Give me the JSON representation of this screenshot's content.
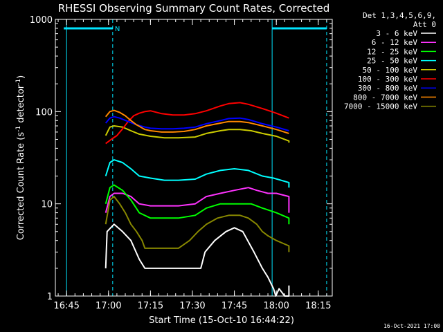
{
  "chart_data": {
    "type": "line",
    "title": "RHESSI Observing Summary Count Rates, Corrected",
    "xlabel": "Start Time (15-Oct-10 16:44:22)",
    "ylabel_parts": [
      "Corrected Count Rate (s",
      "-1",
      " detector",
      "-1",
      ")"
    ],
    "xlim_minutes": [
      -4,
      95
    ],
    "ylim": [
      1,
      1000
    ],
    "log_y": true,
    "x_ticks": [
      {
        "t": 0,
        "label": "16:45"
      },
      {
        "t": 15,
        "label": "17:00"
      },
      {
        "t": 30,
        "label": "17:15"
      },
      {
        "t": 45,
        "label": "17:30"
      },
      {
        "t": 60,
        "label": "17:45"
      },
      {
        "t": 75,
        "label": "18:00"
      },
      {
        "t": 90,
        "label": "18:15"
      }
    ],
    "y_ticks": [
      {
        "v": 1,
        "label": "1"
      },
      {
        "v": 10,
        "label": "10"
      },
      {
        "v": 100,
        "label": "100"
      },
      {
        "v": 1000,
        "label": "1000"
      }
    ],
    "legend_position": "top-right (outside plot)",
    "legend_header": [
      "Det 1,3,4,5,6,9,",
      "Att 0"
    ],
    "night_flag_label": "N",
    "night_color": "#00e5ff",
    "night_intervals": [
      {
        "start": -1,
        "end": 16.5
      },
      {
        "start": 73.5,
        "end": 93
      }
    ],
    "night_dashed_lines": [
      16.5,
      93
    ],
    "night_solid_lines": [
      0,
      73.5
    ],
    "series": [
      {
        "name": "3 - 6 keV",
        "color": "#ffffff",
        "points": [
          [
            14,
            2
          ],
          [
            14.5,
            5
          ],
          [
            17,
            6
          ],
          [
            20,
            5
          ],
          [
            23,
            4
          ],
          [
            26,
            2.5
          ],
          [
            28,
            2
          ],
          [
            40,
            2
          ],
          [
            48,
            2
          ],
          [
            49.5,
            3
          ],
          [
            53,
            4
          ],
          [
            57,
            5
          ],
          [
            60,
            5.5
          ],
          [
            63,
            5
          ],
          [
            67,
            3
          ],
          [
            70,
            2
          ],
          [
            72,
            1.6
          ],
          [
            74,
            1.2
          ],
          [
            74.8,
            1
          ],
          [
            76,
            1.2
          ],
          [
            78,
            1
          ],
          [
            79.5,
            1
          ],
          [
            79.5,
            1.3
          ]
        ]
      },
      {
        "name": "6 - 12 keV",
        "color": "#ff33ff",
        "points": [
          [
            14,
            8
          ],
          [
            15.5,
            12
          ],
          [
            17,
            13
          ],
          [
            20,
            13
          ],
          [
            23,
            12
          ],
          [
            26,
            10
          ],
          [
            30,
            9.5
          ],
          [
            35,
            9.5
          ],
          [
            40,
            9.5
          ],
          [
            46,
            10
          ],
          [
            50,
            12
          ],
          [
            55,
            13
          ],
          [
            60,
            14
          ],
          [
            65,
            15
          ],
          [
            68,
            14
          ],
          [
            72,
            13
          ],
          [
            75,
            13
          ],
          [
            79.5,
            12
          ],
          [
            79.5,
            8
          ]
        ]
      },
      {
        "name": "12 - 25 keV",
        "color": "#00ff00",
        "points": [
          [
            14,
            10
          ],
          [
            15.5,
            15
          ],
          [
            17,
            16
          ],
          [
            20,
            14
          ],
          [
            23,
            11
          ],
          [
            26,
            8
          ],
          [
            30,
            7
          ],
          [
            35,
            7
          ],
          [
            40,
            7
          ],
          [
            46,
            7.5
          ],
          [
            50,
            9
          ],
          [
            55,
            10
          ],
          [
            58,
            10
          ],
          [
            62,
            10
          ],
          [
            66,
            10
          ],
          [
            70,
            9
          ],
          [
            75,
            8
          ],
          [
            79.5,
            7
          ],
          [
            79.5,
            6
          ]
        ]
      },
      {
        "name": "25 - 50 keV",
        "color": "#00ffff",
        "points": [
          [
            14,
            20
          ],
          [
            15.5,
            28
          ],
          [
            17,
            30
          ],
          [
            20,
            28
          ],
          [
            23,
            24
          ],
          [
            26,
            20
          ],
          [
            30,
            19
          ],
          [
            35,
            18
          ],
          [
            40,
            18
          ],
          [
            46,
            18.5
          ],
          [
            50,
            21
          ],
          [
            55,
            23
          ],
          [
            60,
            24
          ],
          [
            65,
            23
          ],
          [
            70,
            20
          ],
          [
            74,
            19
          ],
          [
            79.5,
            17
          ],
          [
            79.5,
            15
          ]
        ]
      },
      {
        "name": "50 - 100 keV",
        "color": "#cccc00",
        "points": [
          [
            14,
            55
          ],
          [
            15.5,
            68
          ],
          [
            17,
            70
          ],
          [
            20,
            68
          ],
          [
            23,
            62
          ],
          [
            26,
            57
          ],
          [
            30,
            54
          ],
          [
            35,
            52
          ],
          [
            40,
            52
          ],
          [
            46,
            53
          ],
          [
            50,
            58
          ],
          [
            55,
            62
          ],
          [
            58,
            64
          ],
          [
            62,
            64
          ],
          [
            66,
            62
          ],
          [
            70,
            58
          ],
          [
            75,
            54
          ],
          [
            79.5,
            48
          ],
          [
            79.5,
            46
          ]
        ]
      },
      {
        "name": "100 - 300 keV",
        "color": "#ff0000",
        "points": [
          [
            14,
            45
          ],
          [
            16,
            50
          ],
          [
            18,
            55
          ],
          [
            20,
            65
          ],
          [
            22,
            78
          ],
          [
            24,
            90
          ],
          [
            26,
            96
          ],
          [
            28,
            100
          ],
          [
            30,
            102
          ],
          [
            34,
            95
          ],
          [
            38,
            92
          ],
          [
            42,
            92
          ],
          [
            46,
            95
          ],
          [
            50,
            102
          ],
          [
            55,
            115
          ],
          [
            58,
            122
          ],
          [
            62,
            125
          ],
          [
            65,
            120
          ],
          [
            70,
            108
          ],
          [
            75,
            96
          ],
          [
            79.5,
            85
          ]
        ]
      },
      {
        "name": "300 - 800 keV",
        "color": "#0000ff",
        "points": [
          [
            14,
            75
          ],
          [
            15.5,
            85
          ],
          [
            17,
            88
          ],
          [
            19,
            85
          ],
          [
            22,
            78
          ],
          [
            25,
            72
          ],
          [
            28,
            68
          ],
          [
            30,
            66
          ],
          [
            34,
            65
          ],
          [
            38,
            65
          ],
          [
            42,
            66
          ],
          [
            46,
            68
          ],
          [
            50,
            74
          ],
          [
            55,
            80
          ],
          [
            58,
            84
          ],
          [
            62,
            85
          ],
          [
            65,
            82
          ],
          [
            70,
            74
          ],
          [
            75,
            68
          ],
          [
            79.5,
            62
          ]
        ]
      },
      {
        "name": "800 - 7000 keV",
        "color": "#ff8800",
        "points": [
          [
            14,
            88
          ],
          [
            15.5,
            100
          ],
          [
            17,
            103
          ],
          [
            19,
            98
          ],
          [
            21,
            90
          ],
          [
            23,
            80
          ],
          [
            25,
            72
          ],
          [
            28,
            64
          ],
          [
            30,
            62
          ],
          [
            34,
            60
          ],
          [
            38,
            60
          ],
          [
            42,
            61
          ],
          [
            46,
            64
          ],
          [
            50,
            70
          ],
          [
            55,
            75
          ],
          [
            58,
            78
          ],
          [
            62,
            78
          ],
          [
            65,
            76
          ],
          [
            70,
            70
          ],
          [
            75,
            64
          ],
          [
            79.5,
            58
          ]
        ]
      },
      {
        "name": "7000 - 15000 keV",
        "color": "#888800",
        "points": [
          [
            14,
            6
          ],
          [
            15.5,
            11
          ],
          [
            17,
            12
          ],
          [
            19,
            10
          ],
          [
            21,
            8
          ],
          [
            23,
            6
          ],
          [
            25,
            5
          ],
          [
            27,
            4
          ],
          [
            28,
            3.3
          ],
          [
            35,
            3.3
          ],
          [
            40,
            3.3
          ],
          [
            44,
            4
          ],
          [
            47,
            5
          ],
          [
            50,
            6
          ],
          [
            54,
            7
          ],
          [
            58,
            7.5
          ],
          [
            62,
            7.5
          ],
          [
            65,
            7
          ],
          [
            68,
            6
          ],
          [
            70,
            5
          ],
          [
            72,
            4.5
          ],
          [
            75,
            4
          ],
          [
            79.5,
            3.5
          ],
          [
            79.5,
            3
          ]
        ]
      }
    ]
  },
  "footer": {
    "timestamp": "16-Oct-2021 17:00"
  }
}
